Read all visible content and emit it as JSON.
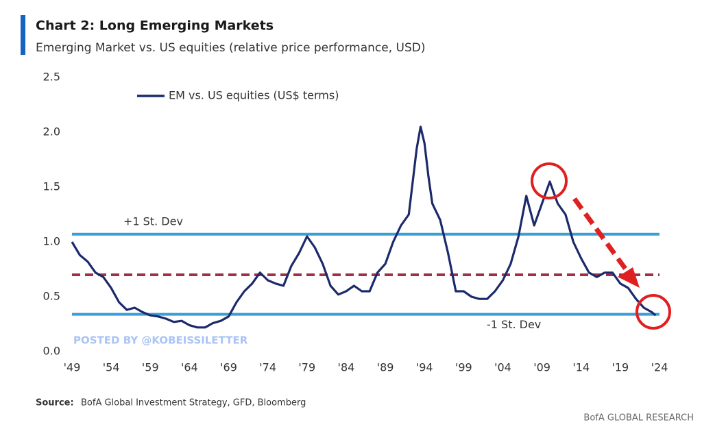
{
  "chart_data": {
    "type": "line",
    "title": "Chart 2: Long Emerging Markets",
    "subtitle": "Emerging Market vs. US equities (relative price performance, USD)",
    "x": [
      1949,
      1950,
      1951,
      1952,
      1953,
      1954,
      1955,
      1956,
      1957,
      1958,
      1959,
      1960,
      1961,
      1962,
      1963,
      1964,
      1965,
      1966,
      1967,
      1968,
      1969,
      1970,
      1971,
      1972,
      1973,
      1974,
      1975,
      1976,
      1977,
      1978,
      1979,
      1980,
      1981,
      1982,
      1983,
      1984,
      1985,
      1986,
      1987,
      1988,
      1989,
      1990,
      1991,
      1992,
      1993,
      1993.5,
      1994,
      1994.5,
      1995,
      1996,
      1997,
      1998,
      1999,
      2000,
      2001,
      2002,
      2003,
      2004,
      2005,
      2006,
      2007,
      2008,
      2009,
      2010,
      2011,
      2012,
      2013,
      2014,
      2015,
      2016,
      2017,
      2018,
      2019,
      2020,
      2021,
      2022,
      2023,
      2023.5
    ],
    "series": [
      {
        "name": "EM vs. US equities (US$ terms)",
        "color": "#1c2a6b",
        "values": [
          1.0,
          0.88,
          0.82,
          0.72,
          0.68,
          0.58,
          0.45,
          0.38,
          0.4,
          0.36,
          0.33,
          0.32,
          0.3,
          0.27,
          0.28,
          0.24,
          0.22,
          0.22,
          0.26,
          0.28,
          0.32,
          0.45,
          0.55,
          0.62,
          0.72,
          0.65,
          0.62,
          0.6,
          0.78,
          0.9,
          1.05,
          0.95,
          0.8,
          0.6,
          0.52,
          0.55,
          0.6,
          0.55,
          0.55,
          0.72,
          0.8,
          1.0,
          1.15,
          1.25,
          1.85,
          2.05,
          1.9,
          1.6,
          1.35,
          1.2,
          0.9,
          0.55,
          0.55,
          0.5,
          0.48,
          0.48,
          0.55,
          0.65,
          0.8,
          1.05,
          1.42,
          1.15,
          1.35,
          1.55,
          1.35,
          1.25,
          1.0,
          0.85,
          0.72,
          0.68,
          0.72,
          0.72,
          0.62,
          0.58,
          0.48,
          0.4,
          0.36,
          0.33
        ]
      }
    ],
    "reference_lines": [
      {
        "value": 1.07,
        "label": "+1 St. Dev",
        "color": "#3a9fd8",
        "style": "solid"
      },
      {
        "value": 0.7,
        "color": "#a03048",
        "style": "dashed"
      },
      {
        "value": 0.34,
        "label": "-1 St. Dev",
        "color": "#3a9fd8",
        "style": "solid"
      }
    ],
    "xlim": [
      1949,
      2024
    ],
    "xticks": [
      {
        "value": 1949,
        "label": "'49"
      },
      {
        "value": 1954,
        "label": "'54"
      },
      {
        "value": 1959,
        "label": "'59"
      },
      {
        "value": 1964,
        "label": "'64"
      },
      {
        "value": 1969,
        "label": "'69"
      },
      {
        "value": 1974,
        "label": "'74"
      },
      {
        "value": 1979,
        "label": "'79"
      },
      {
        "value": 1984,
        "label": "'84"
      },
      {
        "value": 1989,
        "label": "'89"
      },
      {
        "value": 1994,
        "label": "'94"
      },
      {
        "value": 1999,
        "label": "'99"
      },
      {
        "value": 2004,
        "label": "'04"
      },
      {
        "value": 2009,
        "label": "'09"
      },
      {
        "value": 2014,
        "label": "'14"
      },
      {
        "value": 2019,
        "label": "'19"
      },
      {
        "value": 2024,
        "label": "'24"
      }
    ],
    "ylim": [
      0,
      2.5
    ],
    "yticks": [
      {
        "value": 0,
        "label": "0.0"
      },
      0.5,
      {
        "value": 1,
        "label": "1.0"
      },
      1.5,
      {
        "value": 2,
        "label": "2.0"
      },
      2.5
    ],
    "grid": false,
    "watermark": "POSTED BY @KOBEISSILETTER",
    "source_label": "Source:",
    "source": "BofA Global Investment Strategy, GFD, Bloomberg",
    "footer": "BofA GLOBAL RESEARCH"
  }
}
